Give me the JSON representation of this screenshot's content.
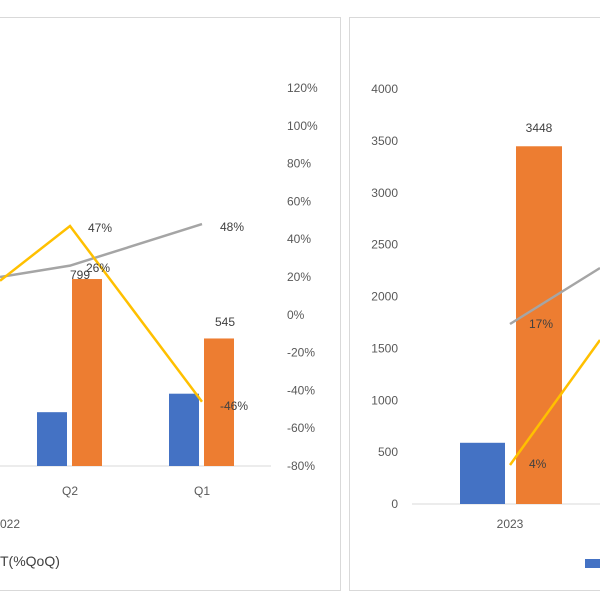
{
  "colors": {
    "blue": "#4472C4",
    "orange": "#ED7D31",
    "gray": "#A5A5A5",
    "yellow": "#FFC000",
    "axis": "#D9D9D9",
    "text": "#595959"
  },
  "chart_data": [
    {
      "type": "bar",
      "title": "",
      "categories": [
        "Q2",
        "Q1"
      ],
      "series": [
        {
          "name": "",
          "kind": "bar",
          "axis": "left",
          "values": [
            230,
            309
          ]
        },
        {
          "name": "",
          "kind": "bar",
          "axis": "left",
          "values": [
            799,
            545
          ]
        },
        {
          "name": "",
          "kind": "line",
          "axis": "right",
          "values": [
            26,
            48
          ],
          "labels": [
            "26%",
            "48%"
          ]
        },
        {
          "name": "",
          "kind": "line",
          "axis": "right",
          "values": [
            47,
            -46
          ],
          "labels": [
            "47%",
            "-46%"
          ]
        }
      ],
      "bar_labels": {
        "Q2": "799",
        "Q1": "545"
      },
      "y2_ticks": [
        "120%",
        "100%",
        "80%",
        "60%",
        "40%",
        "20%",
        "0%",
        "-20%",
        "-40%",
        "-60%",
        "-80%"
      ],
      "y2lim": [
        -80,
        120
      ],
      "year_label": "022",
      "legend_fragment": "T(%QoQ)"
    },
    {
      "type": "bar",
      "title": "",
      "categories": [
        "2023"
      ],
      "series": [
        {
          "name": "",
          "kind": "bar",
          "axis": "left",
          "values": [
            590
          ]
        },
        {
          "name": "",
          "kind": "bar",
          "axis": "left",
          "values": [
            3448
          ]
        },
        {
          "name": "",
          "kind": "line",
          "axis": "right",
          "values": [
            17
          ],
          "labels": [
            "17%"
          ]
        },
        {
          "name": "",
          "kind": "line",
          "axis": "right",
          "values": [
            4
          ],
          "labels": [
            "4%"
          ]
        }
      ],
      "bar_labels": {
        "2023": "3448"
      },
      "y_ticks": [
        "4000",
        "3500",
        "3000",
        "2500",
        "2000",
        "1500",
        "1000",
        "500",
        "0"
      ],
      "ylim": [
        0,
        4000
      ]
    }
  ]
}
